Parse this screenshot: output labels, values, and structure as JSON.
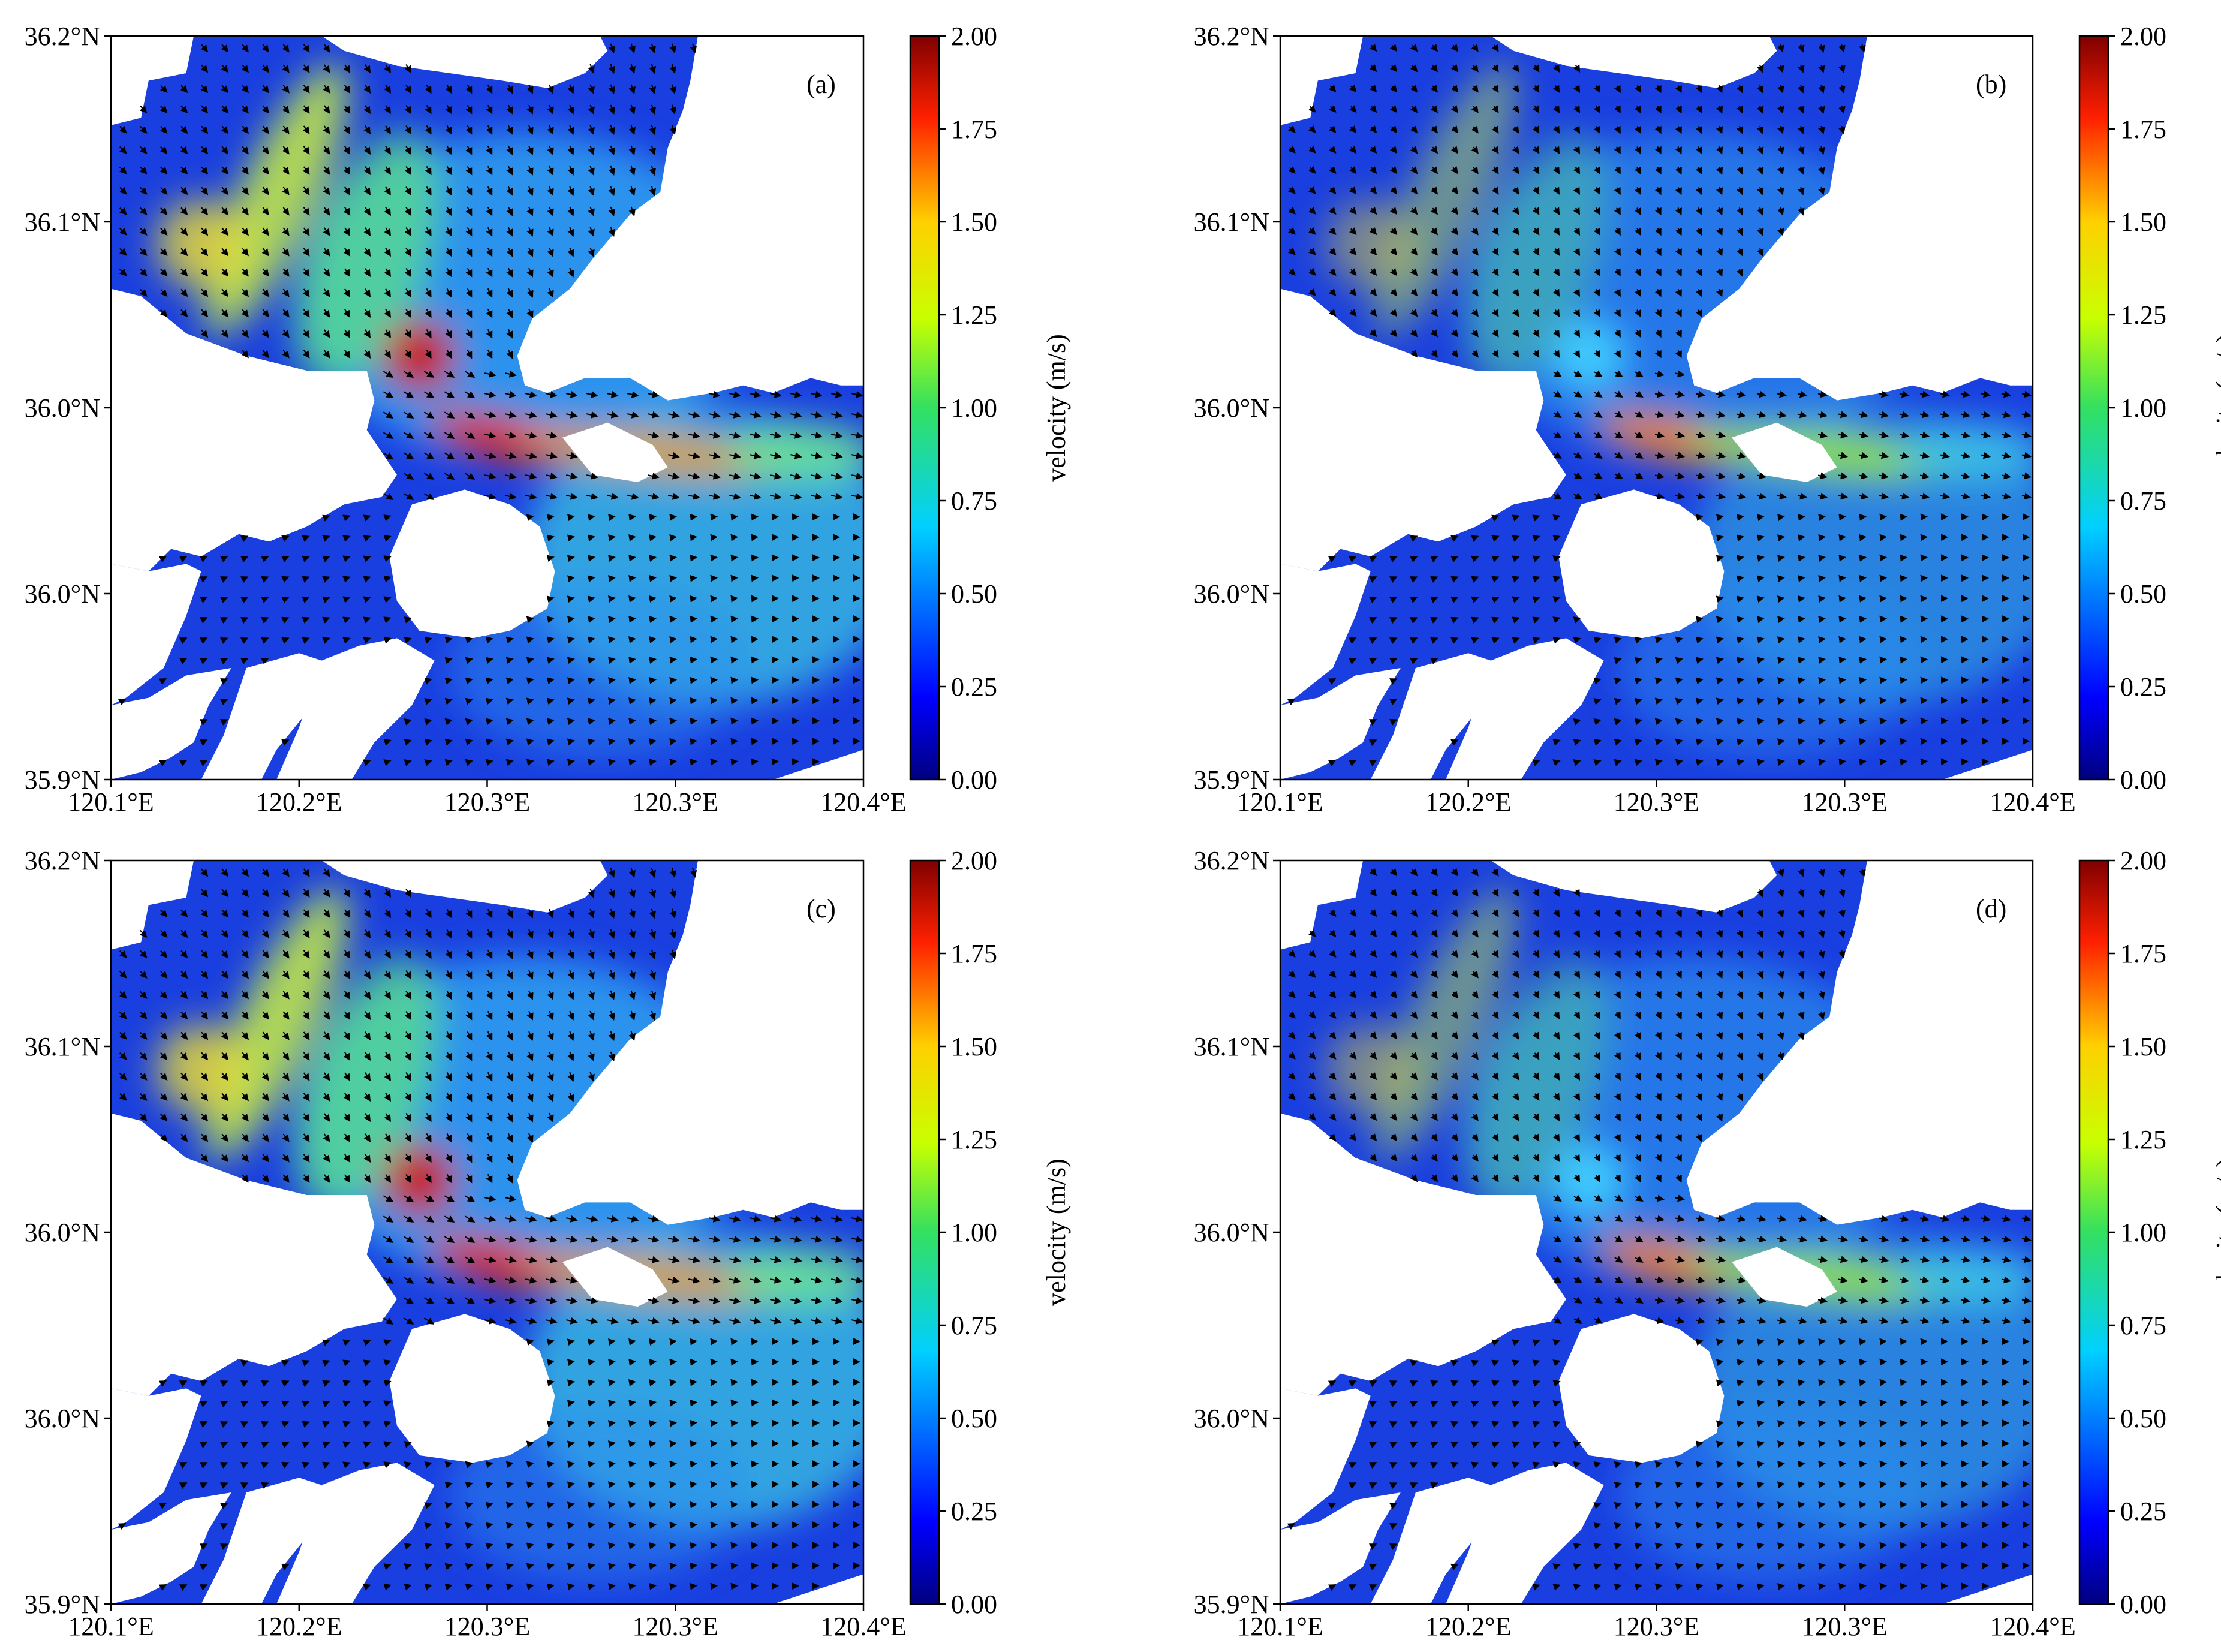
{
  "figure": {
    "colorbar": {
      "label": "velocity (m/s)",
      "ticks": [
        "0.00",
        "0.25",
        "0.50",
        "0.75",
        "1.00",
        "1.25",
        "1.50",
        "1.75",
        "2.00"
      ],
      "range": [
        0,
        2
      ],
      "colormap": "jet"
    },
    "axes": {
      "x_ticks": [
        "120.1°E",
        "120.2°E",
        "120.3°E",
        "120.3°E",
        "120.4°E"
      ],
      "y_ticks": [
        "36.2°N",
        "36.1°N",
        "36.0°N",
        "36.0°N",
        "35.9°N"
      ]
    },
    "panels": [
      {
        "id": "a",
        "label": "(a)",
        "intensity": 1.0
      },
      {
        "id": "b",
        "label": "(b)",
        "intensity": 0.55
      },
      {
        "id": "c",
        "label": "(c)",
        "intensity": 1.0
      },
      {
        "id": "d",
        "label": "(d)",
        "intensity": 0.55
      }
    ],
    "colors": {
      "land": "#ffffff",
      "low": "#1a3fe0",
      "mid": "#35c8d0",
      "high": "#d81400",
      "arrow": "#000000"
    }
  }
}
